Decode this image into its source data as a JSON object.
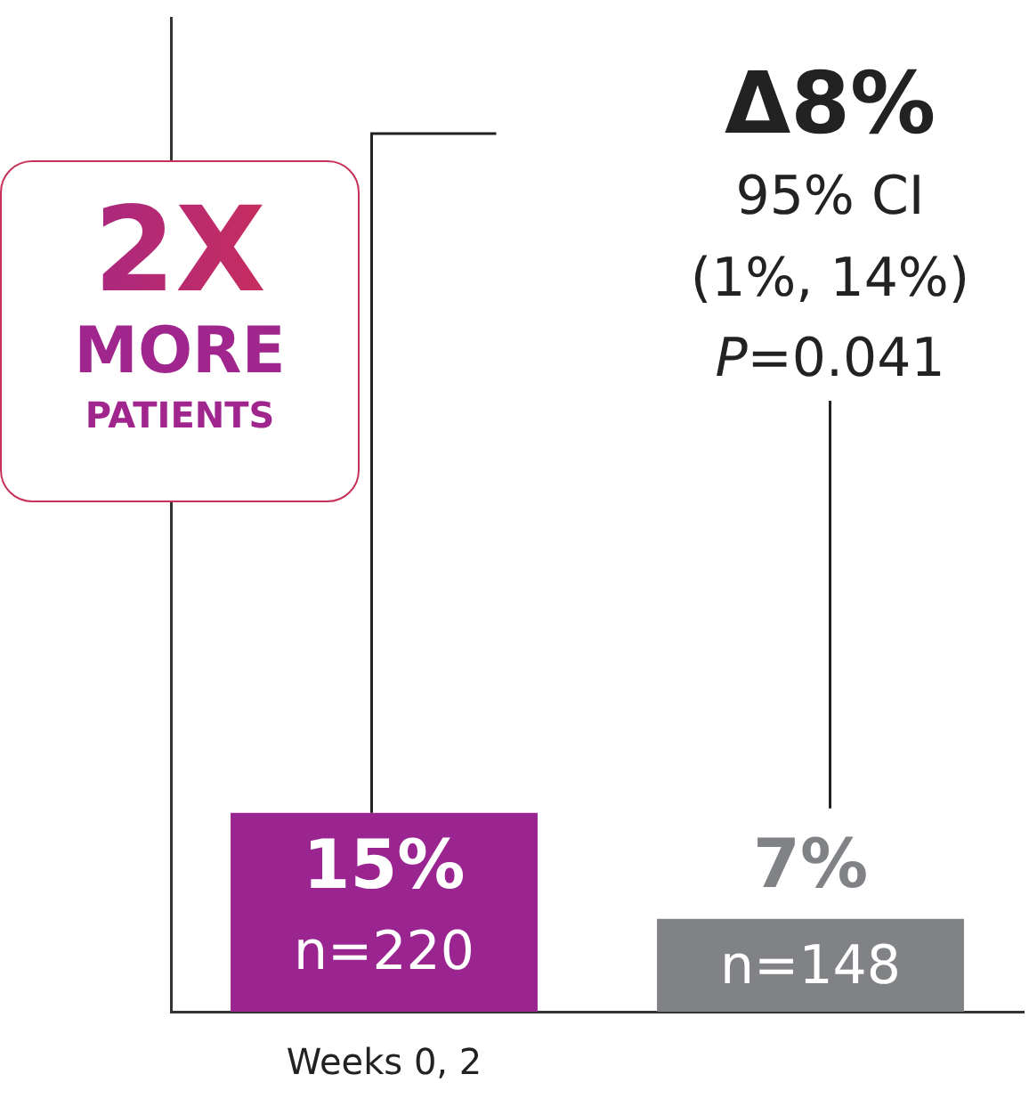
{
  "chart_data": {
    "type": "bar",
    "categories": [
      "Weeks 0, 2",
      null
    ],
    "values": [
      15,
      7
    ],
    "colors": [
      "#9b2590",
      "#808285"
    ],
    "value_labels": [
      "15%",
      "7%"
    ],
    "tick_labels": "x",
    "grid": false,
    "legend": false,
    "annotations": [
      "2X",
      "MORE",
      "PATIENTS",
      "Δ8%",
      "95% CI",
      "(1%, 14%)",
      "P=0.041",
      "n=220",
      "n=148"
    ]
  }
}
